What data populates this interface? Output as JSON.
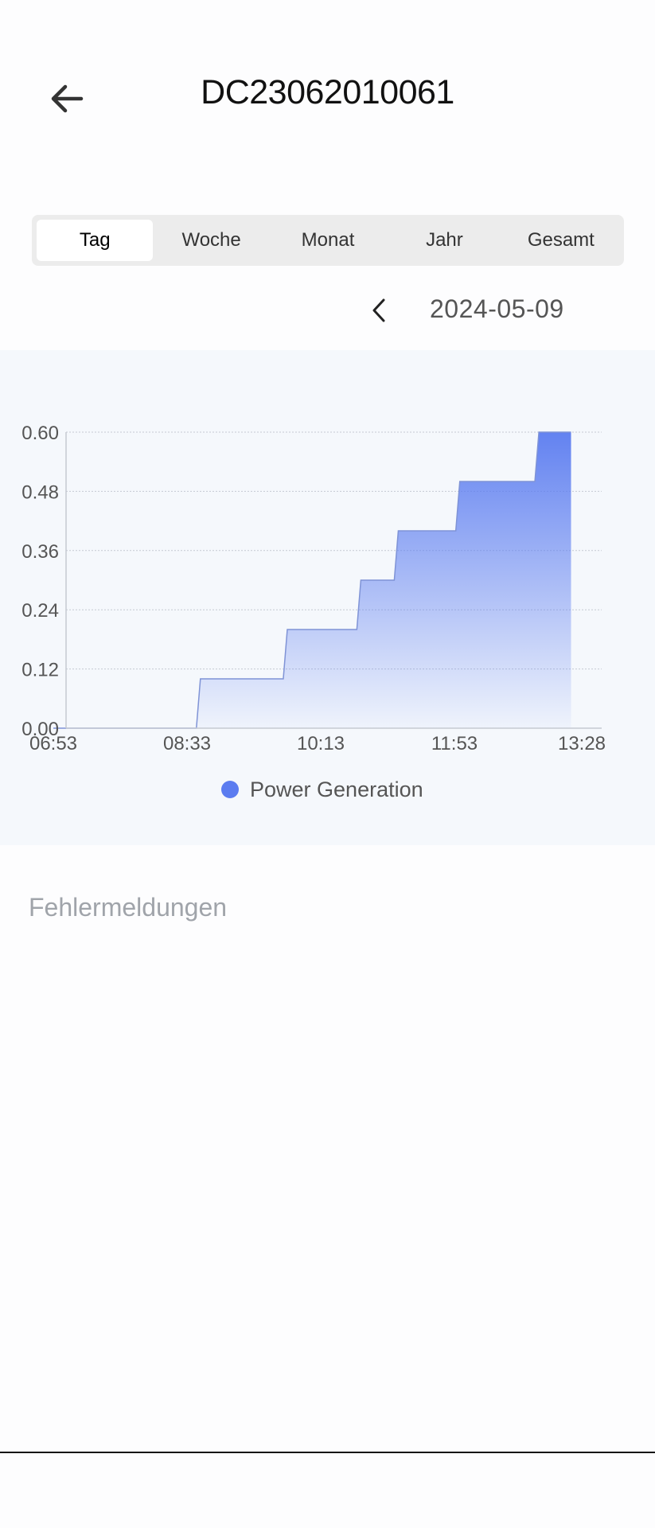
{
  "header": {
    "title": "DC23062010061",
    "back_icon": "arrow-left-icon"
  },
  "tabs": [
    {
      "label": "Tag",
      "active": true
    },
    {
      "label": "Woche",
      "active": false
    },
    {
      "label": "Monat",
      "active": false
    },
    {
      "label": "Jahr",
      "active": false
    },
    {
      "label": "Gesamt",
      "active": false
    }
  ],
  "date_nav": {
    "prev_icon": "chevron-left-icon",
    "date": "2024-05-09"
  },
  "chart_data": {
    "type": "area",
    "x_tick_labels": [
      "06:53",
      "08:33",
      "10:13",
      "11:53",
      "13:28"
    ],
    "y_ticks": [
      "0.00",
      "0.12",
      "0.24",
      "0.36",
      "0.48",
      "0.60"
    ],
    "ylim": [
      0,
      0.6
    ],
    "grid": true,
    "legend_position": "bottom",
    "series": [
      {
        "name": "Power Generation",
        "color": "#5b7cf0",
        "points": [
          {
            "x": "06:53",
            "y": 0.0
          },
          {
            "x": "08:40",
            "y": 0.0
          },
          {
            "x": "08:43",
            "y": 0.1
          },
          {
            "x": "09:45",
            "y": 0.1
          },
          {
            "x": "09:48",
            "y": 0.2
          },
          {
            "x": "10:40",
            "y": 0.2
          },
          {
            "x": "10:43",
            "y": 0.3
          },
          {
            "x": "11:08",
            "y": 0.3
          },
          {
            "x": "11:11",
            "y": 0.4
          },
          {
            "x": "11:54",
            "y": 0.4
          },
          {
            "x": "11:57",
            "y": 0.5
          },
          {
            "x": "12:53",
            "y": 0.5
          },
          {
            "x": "12:56",
            "y": 0.6
          },
          {
            "x": "13:20",
            "y": 0.6
          }
        ]
      }
    ]
  },
  "errors": {
    "title": "Fehlermeldungen"
  }
}
